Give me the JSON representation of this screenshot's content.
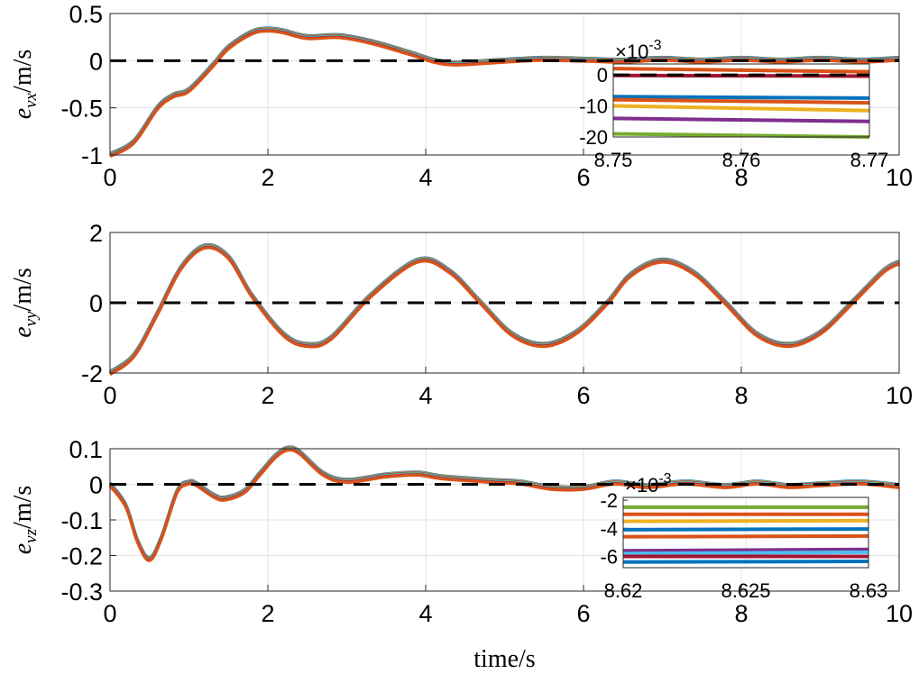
{
  "chart_data": [
    {
      "type": "line",
      "ylabel": {
        "symbol": "e",
        "sub": "vx",
        "unit": "/m/s"
      },
      "xlim": [
        0,
        10
      ],
      "ylim": [
        -1,
        0.5
      ],
      "xticks": [
        "0",
        "2",
        "4",
        "6",
        "8",
        "10"
      ],
      "xtick_values": [
        0,
        2,
        4,
        6,
        8,
        10
      ],
      "yticks": [
        "0.5",
        "0",
        "-0.5",
        "-1"
      ],
      "ytick_values": [
        0.5,
        0,
        -0.5,
        -1
      ],
      "grid": true,
      "reference_line": 0,
      "curve": [
        [
          0,
          -1
        ],
        [
          0.3,
          -0.86
        ],
        [
          0.6,
          -0.5
        ],
        [
          0.8,
          -0.37
        ],
        [
          1.0,
          -0.31
        ],
        [
          1.3,
          -0.05
        ],
        [
          1.5,
          0.14
        ],
        [
          1.8,
          0.3
        ],
        [
          2.0,
          0.33
        ],
        [
          2.2,
          0.31
        ],
        [
          2.5,
          0.25
        ],
        [
          2.9,
          0.26
        ],
        [
          3.3,
          0.2
        ],
        [
          3.8,
          0.08
        ],
        [
          4.1,
          0.0
        ],
        [
          4.4,
          -0.03
        ],
        [
          5,
          0
        ],
        [
          5.5,
          0.02
        ],
        [
          6,
          0.01
        ],
        [
          6.5,
          0.0
        ],
        [
          7,
          0.02
        ],
        [
          7.5,
          0.0
        ],
        [
          8,
          0.02
        ],
        [
          8.5,
          0.0
        ],
        [
          9,
          0.02
        ],
        [
          9.5,
          0.0
        ],
        [
          10,
          0.02
        ]
      ],
      "inset": {
        "xlim": [
          8.75,
          8.77
        ],
        "ylim": [
          -20,
          3.5
        ],
        "exponent_label": "×10",
        "exponent": "-3",
        "xticks": [
          "8.75",
          "8.76",
          "8.77"
        ],
        "xtick_values": [
          8.75,
          8.76,
          8.77
        ],
        "yticks": [
          "0",
          "-10",
          "-20"
        ],
        "ytick_values": [
          0,
          -10,
          -20
        ],
        "lines": [
          {
            "color": "#D95319",
            "y": [
              2,
              1
            ]
          },
          {
            "color": "#A2142F",
            "y": [
              -0.2,
              -0.4
            ]
          },
          {
            "color": "#0072BD",
            "y": [
              -7,
              -7.5
            ]
          },
          {
            "color": "#D95319",
            "y": [
              -8,
              -9
            ]
          },
          {
            "color": "#EDB120",
            "y": [
              -10,
              -11.5
            ]
          },
          {
            "color": "#7E2F8E",
            "y": [
              -14,
              -15
            ]
          },
          {
            "color": "#77AC30",
            "y": [
              -19,
              -20
            ]
          }
        ]
      }
    },
    {
      "type": "line",
      "ylabel": {
        "symbol": "e",
        "sub": "vy",
        "unit": "/m/s"
      },
      "xlim": [
        0,
        10
      ],
      "ylim": [
        -2,
        2
      ],
      "xticks": [
        "0",
        "2",
        "4",
        "6",
        "8",
        "10"
      ],
      "xtick_values": [
        0,
        2,
        4,
        6,
        8,
        10
      ],
      "yticks": [
        "2",
        "0",
        "-2"
      ],
      "ytick_values": [
        2,
        0,
        -2
      ],
      "grid": true,
      "reference_line": 0,
      "curve": [
        [
          0,
          -2
        ],
        [
          0.3,
          -1.5
        ],
        [
          0.6,
          -0.3
        ],
        [
          0.9,
          1.0
        ],
        [
          1.2,
          1.6
        ],
        [
          1.5,
          1.3
        ],
        [
          1.8,
          0.2
        ],
        [
          2.2,
          -0.9
        ],
        [
          2.5,
          -1.2
        ],
        [
          2.8,
          -1.0
        ],
        [
          3.3,
          0.2
        ],
        [
          3.9,
          1.2
        ],
        [
          4.3,
          0.9
        ],
        [
          4.7,
          0
        ],
        [
          5.1,
          -0.9
        ],
        [
          5.5,
          -1.2
        ],
        [
          5.9,
          -0.85
        ],
        [
          6.3,
          0
        ],
        [
          6.6,
          0.8
        ],
        [
          7.0,
          1.2
        ],
        [
          7.4,
          0.85
        ],
        [
          7.8,
          0
        ],
        [
          8.2,
          -0.9
        ],
        [
          8.6,
          -1.2
        ],
        [
          9.0,
          -0.85
        ],
        [
          9.4,
          0
        ],
        [
          9.8,
          0.9
        ],
        [
          10,
          1.15
        ]
      ]
    },
    {
      "type": "line",
      "ylabel": {
        "symbol": "e",
        "sub": "vz",
        "unit": "/m/s"
      },
      "xlim": [
        0,
        10
      ],
      "ylim": [
        -0.3,
        0.1
      ],
      "xticks": [
        "0",
        "2",
        "4",
        "6",
        "8",
        "10"
      ],
      "xtick_values": [
        0,
        2,
        4,
        6,
        8,
        10
      ],
      "yticks": [
        "0.1",
        "0",
        "-0.1",
        "-0.2",
        "-0.3"
      ],
      "ytick_values": [
        0.1,
        0,
        -0.1,
        -0.2,
        -0.3
      ],
      "grid": true,
      "reference_line": 0,
      "xlabel": "time/s",
      "curve": [
        [
          0,
          0
        ],
        [
          0.2,
          -0.06
        ],
        [
          0.35,
          -0.16
        ],
        [
          0.5,
          -0.21
        ],
        [
          0.65,
          -0.15
        ],
        [
          0.85,
          -0.02
        ],
        [
          1.0,
          0.005
        ],
        [
          1.1,
          0.0
        ],
        [
          1.3,
          -0.03
        ],
        [
          1.45,
          -0.04
        ],
        [
          1.7,
          -0.02
        ],
        [
          1.9,
          0.03
        ],
        [
          2.1,
          0.08
        ],
        [
          2.25,
          0.1
        ],
        [
          2.4,
          0.09
        ],
        [
          2.7,
          0.03
        ],
        [
          3.0,
          0.01
        ],
        [
          3.5,
          0.025
        ],
        [
          3.9,
          0.03
        ],
        [
          4.2,
          0.02
        ],
        [
          4.8,
          0.01
        ],
        [
          5.2,
          0.005
        ],
        [
          5.6,
          -0.01
        ],
        [
          6,
          -0.01
        ],
        [
          6.4,
          0.005
        ],
        [
          6.8,
          -0.005
        ],
        [
          7.3,
          0.005
        ],
        [
          7.8,
          -0.005
        ],
        [
          8.2,
          0.005
        ],
        [
          8.6,
          -0.005
        ],
        [
          9.0,
          0.0
        ],
        [
          9.5,
          0.005
        ],
        [
          10,
          -0.005
        ]
      ],
      "inset": {
        "xlim": [
          8.62,
          8.63
        ],
        "ylim": [
          -6.8,
          -1.8
        ],
        "exponent_label": "×10",
        "exponent": "-3",
        "xticks": [
          "8.62",
          "8.625",
          "8.63"
        ],
        "xtick_values": [
          8.62,
          8.625,
          8.63
        ],
        "yticks": [
          "-2",
          "-4",
          "-6"
        ],
        "ytick_values": [
          -2,
          -4,
          -6
        ],
        "lines": [
          {
            "color": "#77AC30",
            "y": [
              -2.5,
              -2.5
            ]
          },
          {
            "color": "#D95319",
            "y": [
              -3.0,
              -3.0
            ]
          },
          {
            "color": "#EDB120",
            "y": [
              -3.5,
              -3.45
            ]
          },
          {
            "color": "#0072BD",
            "y": [
              -4.1,
              -4.05
            ]
          },
          {
            "color": "#D95319",
            "y": [
              -4.6,
              -4.55
            ]
          },
          {
            "color": "#7E2F8E",
            "y": [
              -5.6,
              -5.5
            ]
          },
          {
            "color": "#4DBEEE",
            "y": [
              -5.8,
              -5.7
            ]
          },
          {
            "color": "#A2142F",
            "y": [
              -6.0,
              -6.0
            ]
          },
          {
            "color": "#0072BD",
            "y": [
              -6.4,
              -6.35
            ]
          }
        ]
      }
    }
  ],
  "series_colors": [
    "#0072BD",
    "#EDB120",
    "#7E2F8E",
    "#77AC30",
    "#4DBEEE",
    "#A2142F",
    "#D95319"
  ]
}
